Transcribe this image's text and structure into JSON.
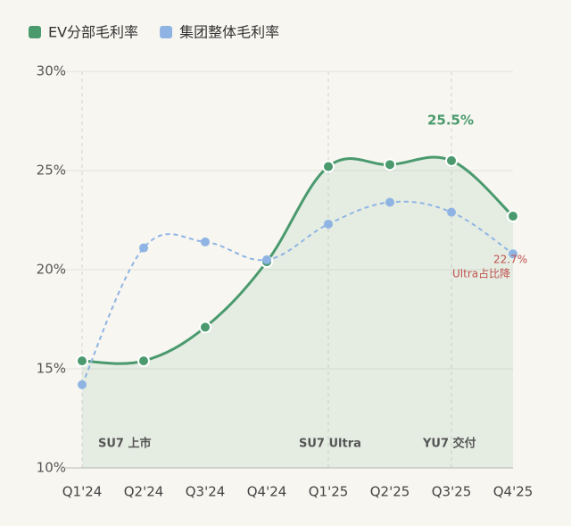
{
  "chart_data": {
    "type": "line",
    "categories": [
      "Q1'24",
      "Q2'24",
      "Q3'24",
      "Q4'24",
      "Q1'25",
      "Q2'25",
      "Q3'25",
      "Q4'25"
    ],
    "series": [
      {
        "name": "EV分部毛利率",
        "color": "#4a9a6e",
        "values": [
          15.4,
          15.4,
          17.1,
          20.4,
          25.2,
          25.3,
          25.5,
          22.7
        ],
        "area": true,
        "dashed": false
      },
      {
        "name": "集团整体毛利率",
        "color": "#8fb4e3",
        "values": [
          14.2,
          21.1,
          21.4,
          20.5,
          22.3,
          23.4,
          22.9,
          20.8
        ],
        "area": false,
        "dashed": true
      }
    ],
    "ylim": [
      10,
      30
    ],
    "yticks": [
      {
        "value": 10,
        "label": "10%"
      },
      {
        "value": 15,
        "label": "15%"
      },
      {
        "value": 20,
        "label": "20%"
      },
      {
        "value": 25,
        "label": "25%"
      },
      {
        "value": 30,
        "label": "30%"
      }
    ],
    "grid": true,
    "legend": "top-left",
    "annotations": [
      "25.5%",
      "SU7 上市",
      "SU7 Ultra",
      "YU7 交付",
      "22.7%",
      "Ultra占比降"
    ]
  }
}
